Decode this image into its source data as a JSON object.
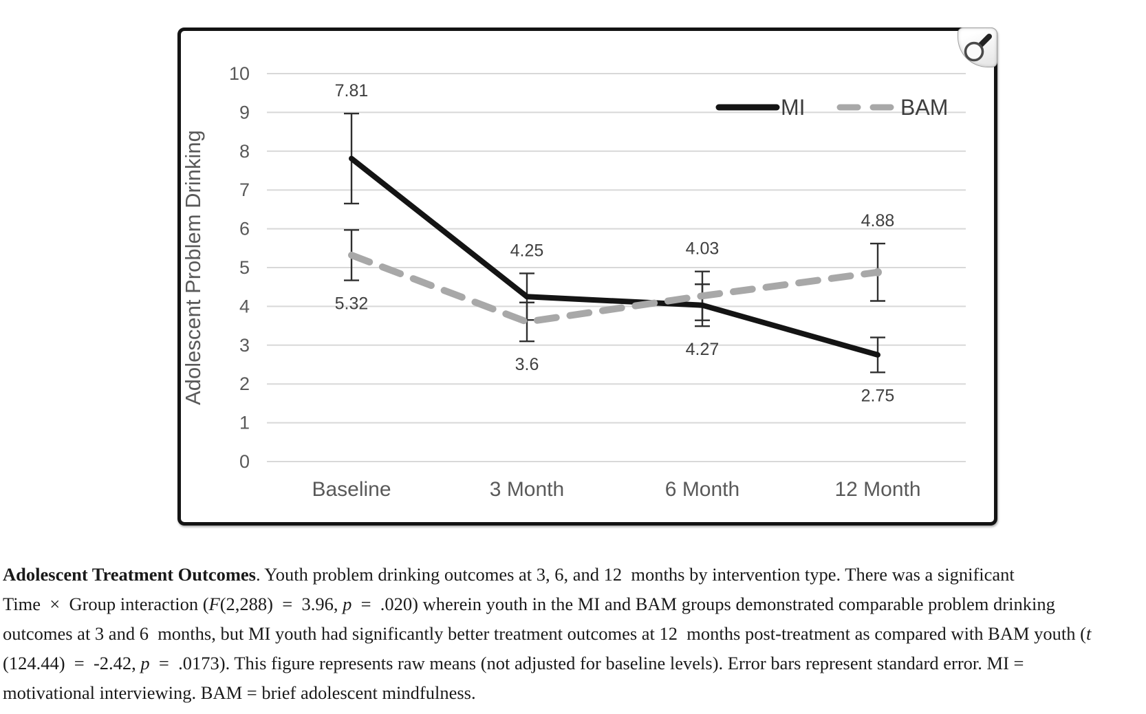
{
  "page": {
    "background": "#ffffff"
  },
  "figure_panel": {
    "zoom_button": {
      "icon": "magnifier-icon"
    }
  },
  "chart_data": {
    "type": "line",
    "title": "",
    "xlabel": "",
    "ylabel": "Adolescent Problem Drinking",
    "ylim": [
      0,
      10
    ],
    "yticks": [
      "0",
      "1",
      "2",
      "3",
      "4",
      "5",
      "6",
      "7",
      "8",
      "9",
      "10"
    ],
    "categories": [
      "Baseline",
      "3 Month",
      "6 Month",
      "12 Month"
    ],
    "grid": true,
    "legend_position": "top-right",
    "error_bars_represent": "standard error",
    "series": [
      {
        "name": "MI",
        "style": "solid",
        "color": "#141414",
        "values": [
          7.81,
          4.25,
          4.03,
          2.75
        ],
        "labels": [
          "7.81",
          "4.25",
          "4.03",
          "2.75"
        ],
        "se": [
          1.16,
          0.6,
          0.54,
          0.45
        ],
        "label_placement": [
          "above",
          "above",
          "above",
          "below"
        ]
      },
      {
        "name": "BAM",
        "style": "dashed",
        "color": "#a8a8a8",
        "values": [
          5.32,
          3.6,
          4.27,
          4.88
        ],
        "labels": [
          "5.32",
          "3.6",
          "4.27",
          "4.88"
        ],
        "se": [
          0.65,
          0.5,
          0.63,
          0.74
        ],
        "label_placement": [
          "below",
          "below",
          "below",
          "above"
        ]
      }
    ],
    "colors": {
      "axis_text": "#595959",
      "grid": "#d8d8d8",
      "data_label": "#3f3f3f",
      "error_bar": "#2f2f2f",
      "legend_text": "#3d3d3d"
    }
  },
  "caption": {
    "segments": [
      {
        "style": "bold",
        "text": "Adolescent Treatment Outcomes"
      },
      {
        "style": "normal",
        "text": ". Youth problem drinking outcomes at 3, 6, and 12  months by intervention type. There was a significant\nTime  ×  Group interaction ("
      },
      {
        "style": "italic",
        "text": "F"
      },
      {
        "style": "normal",
        "text": "(2,288)  =  3.96, "
      },
      {
        "style": "italic",
        "text": "p"
      },
      {
        "style": "normal",
        "text": "  =  .020) wherein youth in the MI and BAM groups demonstrated comparable problem drinking\noutcomes at 3 and 6  months, but MI youth had significantly better treatment outcomes at 12  months post-treatment as compared with BAM youth ("
      },
      {
        "style": "italic",
        "text": "t"
      },
      {
        "style": "normal",
        "text": "\n(124.44)  =  -2.42, "
      },
      {
        "style": "italic",
        "text": "p"
      },
      {
        "style": "normal",
        "text": "  =  .0173). This figure represents raw means (not adjusted for baseline levels). Error bars represent standard error. MI =\nmotivational interviewing. BAM = brief adolescent mindfulness."
      }
    ]
  }
}
